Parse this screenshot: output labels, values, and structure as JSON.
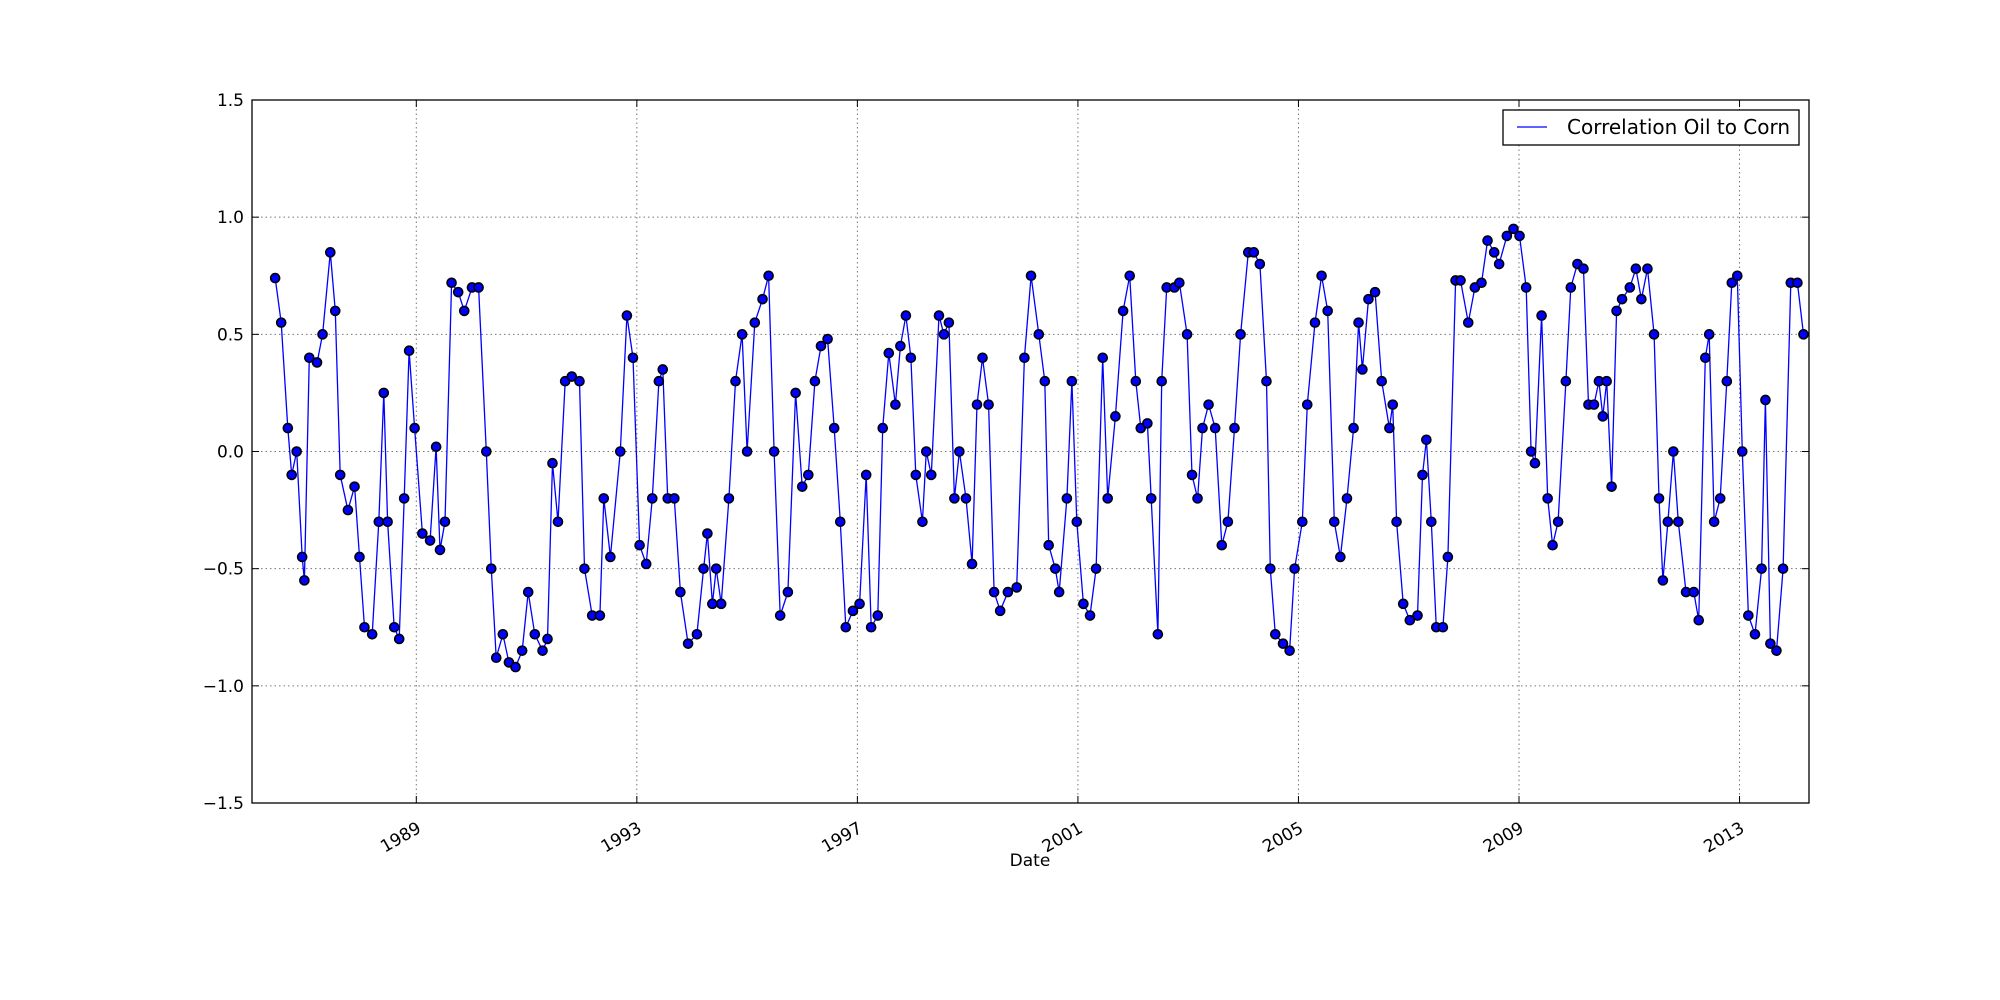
{
  "chart_data": {
    "type": "line",
    "x_label": "Date",
    "x": [
      1986.44,
      1986.55,
      1986.67,
      1986.74,
      1986.83,
      1986.93,
      1986.97,
      1987.06,
      1987.2,
      1987.3,
      1987.44,
      1987.53,
      1987.62,
      1987.76,
      1987.88,
      1987.97,
      1988.06,
      1988.2,
      1988.32,
      1988.41,
      1988.48,
      1988.6,
      1988.69,
      1988.78,
      1988.87,
      1988.97,
      1989.11,
      1989.25,
      1989.36,
      1989.43,
      1989.52,
      1989.64,
      1989.76,
      1989.87,
      1990.01,
      1990.13,
      1990.27,
      1990.36,
      1990.45,
      1990.57,
      1990.68,
      1990.8,
      1990.92,
      1991.03,
      1991.15,
      1991.29,
      1991.38,
      1991.47,
      1991.57,
      1991.7,
      1991.82,
      1991.96,
      1992.05,
      1992.19,
      1992.33,
      1992.4,
      1992.52,
      1992.7,
      1992.82,
      1992.93,
      1993.05,
      1993.17,
      1993.28,
      1993.4,
      1993.47,
      1993.56,
      1993.68,
      1993.79,
      1993.93,
      1994.09,
      1994.21,
      1994.28,
      1994.37,
      1994.44,
      1994.53,
      1994.67,
      1994.79,
      1994.91,
      1995.0,
      1995.14,
      1995.28,
      1995.39,
      1995.49,
      1995.6,
      1995.74,
      1995.88,
      1996.0,
      1996.11,
      1996.23,
      1996.34,
      1996.46,
      1996.58,
      1996.69,
      1996.79,
      1996.92,
      1997.04,
      1997.16,
      1997.25,
      1997.37,
      1997.46,
      1997.57,
      1997.69,
      1997.78,
      1997.88,
      1997.97,
      1998.06,
      1998.18,
      1998.25,
      1998.34,
      1998.48,
      1998.57,
      1998.66,
      1998.76,
      1998.85,
      1998.97,
      1999.08,
      1999.17,
      1999.27,
      1999.38,
      1999.48,
      1999.59,
      1999.73,
      1999.89,
      2000.03,
      2000.15,
      2000.29,
      2000.4,
      2000.47,
      2000.59,
      2000.66,
      2000.8,
      2000.89,
      2000.98,
      2001.1,
      2001.22,
      2001.33,
      2001.45,
      2001.54,
      2001.68,
      2001.82,
      2001.94,
      2002.05,
      2002.14,
      2002.26,
      2002.33,
      2002.45,
      2002.52,
      2002.61,
      2002.75,
      2002.84,
      2002.98,
      2003.07,
      2003.17,
      2003.26,
      2003.37,
      2003.49,
      2003.61,
      2003.72,
      2003.84,
      2003.95,
      2004.09,
      2004.19,
      2004.3,
      2004.42,
      2004.49,
      2004.58,
      2004.72,
      2004.84,
      2004.93,
      2005.07,
      2005.16,
      2005.3,
      2005.42,
      2005.53,
      2005.65,
      2005.76,
      2005.88,
      2006.0,
      2006.09,
      2006.16,
      2006.27,
      2006.39,
      2006.51,
      2006.65,
      2006.71,
      2006.78,
      2006.9,
      2007.02,
      2007.16,
      2007.25,
      2007.32,
      2007.41,
      2007.5,
      2007.62,
      2007.71,
      2007.85,
      2007.94,
      2008.08,
      2008.2,
      2008.32,
      2008.43,
      2008.55,
      2008.64,
      2008.78,
      2008.9,
      2009.01,
      2009.13,
      2009.22,
      2009.29,
      2009.41,
      2009.52,
      2009.61,
      2009.71,
      2009.85,
      2009.94,
      2010.06,
      2010.17,
      2010.26,
      2010.36,
      2010.45,
      2010.52,
      2010.59,
      2010.68,
      2010.77,
      2010.87,
      2011.01,
      2011.12,
      2011.22,
      2011.33,
      2011.45,
      2011.54,
      2011.61,
      2011.7,
      2011.8,
      2011.89,
      2012.03,
      2012.17,
      2012.26,
      2012.38,
      2012.45,
      2012.54,
      2012.65,
      2012.77,
      2012.86,
      2012.96,
      2013.05,
      2013.16,
      2013.28,
      2013.4,
      2013.47,
      2013.56,
      2013.67,
      2013.79,
      2013.93,
      2014.05,
      2014.16
    ],
    "series": [
      {
        "name": "Correlation Oil to Corn",
        "color": "#0000ff",
        "marker_edge": "#000000",
        "values": [
          0.74,
          0.55,
          0.1,
          -0.1,
          0.0,
          -0.45,
          -0.55,
          0.4,
          0.38,
          0.5,
          0.85,
          0.6,
          -0.1,
          -0.25,
          -0.15,
          -0.45,
          -0.75,
          -0.78,
          -0.3,
          0.25,
          -0.3,
          -0.75,
          -0.8,
          -0.2,
          0.43,
          0.1,
          -0.35,
          -0.38,
          0.02,
          -0.42,
          -0.3,
          0.72,
          0.68,
          0.6,
          0.7,
          0.7,
          0.0,
          -0.5,
          -0.88,
          -0.78,
          -0.9,
          -0.92,
          -0.85,
          -0.6,
          -0.78,
          -0.85,
          -0.8,
          -0.05,
          -0.3,
          0.3,
          0.32,
          0.3,
          -0.5,
          -0.7,
          -0.7,
          -0.2,
          -0.45,
          0.0,
          0.58,
          0.4,
          -0.4,
          -0.48,
          -0.2,
          0.3,
          0.35,
          -0.2,
          -0.2,
          -0.6,
          -0.82,
          -0.78,
          -0.5,
          -0.35,
          -0.65,
          -0.5,
          -0.65,
          -0.2,
          0.3,
          0.5,
          0.0,
          0.55,
          0.65,
          0.75,
          0.0,
          -0.7,
          -0.6,
          0.25,
          -0.15,
          -0.1,
          0.3,
          0.45,
          0.48,
          0.1,
          -0.3,
          -0.75,
          -0.68,
          -0.65,
          -0.1,
          -0.75,
          -0.7,
          0.1,
          0.42,
          0.2,
          0.45,
          0.58,
          0.4,
          -0.1,
          -0.3,
          0.0,
          -0.1,
          0.58,
          0.5,
          0.55,
          -0.2,
          0.0,
          -0.2,
          -0.48,
          0.2,
          0.4,
          0.2,
          -0.6,
          -0.68,
          -0.6,
          -0.58,
          0.4,
          0.75,
          0.5,
          0.3,
          -0.4,
          -0.5,
          -0.6,
          -0.2,
          0.3,
          -0.3,
          -0.65,
          -0.7,
          -0.5,
          0.4,
          -0.2,
          0.15,
          0.6,
          0.75,
          0.3,
          0.1,
          0.12,
          -0.2,
          -0.78,
          0.3,
          0.7,
          0.7,
          0.72,
          0.5,
          -0.1,
          -0.2,
          0.1,
          0.2,
          0.1,
          -0.4,
          -0.3,
          0.1,
          0.5,
          0.85,
          0.85,
          0.8,
          0.3,
          -0.5,
          -0.78,
          -0.82,
          -0.85,
          -0.5,
          -0.3,
          0.2,
          0.55,
          0.75,
          0.6,
          -0.3,
          -0.45,
          -0.2,
          0.1,
          0.55,
          0.35,
          0.65,
          0.68,
          0.3,
          0.1,
          0.2,
          -0.3,
          -0.65,
          -0.72,
          -0.7,
          -0.1,
          0.05,
          -0.3,
          -0.75,
          -0.75,
          -0.45,
          0.73,
          0.73,
          0.55,
          0.7,
          0.72,
          0.9,
          0.85,
          0.8,
          0.92,
          0.95,
          0.92,
          0.7,
          0.0,
          -0.05,
          0.58,
          -0.2,
          -0.4,
          -0.3,
          0.3,
          0.7,
          0.8,
          0.78,
          0.2,
          0.2,
          0.3,
          0.15,
          0.3,
          -0.15,
          0.6,
          0.65,
          0.7,
          0.78,
          0.65,
          0.78,
          0.5,
          -0.2,
          -0.55,
          -0.3,
          0.0,
          -0.3,
          -0.6,
          -0.6,
          -0.72,
          0.4,
          0.5,
          -0.3,
          -0.2,
          0.3,
          0.72,
          0.75,
          0.0,
          -0.7,
          -0.78,
          -0.5,
          0.22,
          -0.82,
          -0.85,
          -0.5,
          0.72,
          0.72,
          0.5
        ]
      }
    ],
    "xlim": [
      1986.02,
      2014.26
    ],
    "xticks": [
      1989,
      1993,
      1997,
      2001,
      2005,
      2009,
      2013
    ],
    "ylim": [
      -1.5,
      1.5
    ],
    "yticks": [
      {
        "value": -1.5,
        "label": "−1.5"
      },
      {
        "value": -1,
        "label": "−1.0"
      },
      {
        "value": -0.5,
        "label": "−0.5"
      },
      {
        "value": 0,
        "label": "0.0"
      },
      0.5,
      {
        "value": 1,
        "label": "1.0"
      },
      1.5
    ],
    "grid": true,
    "legend": "upper right"
  }
}
